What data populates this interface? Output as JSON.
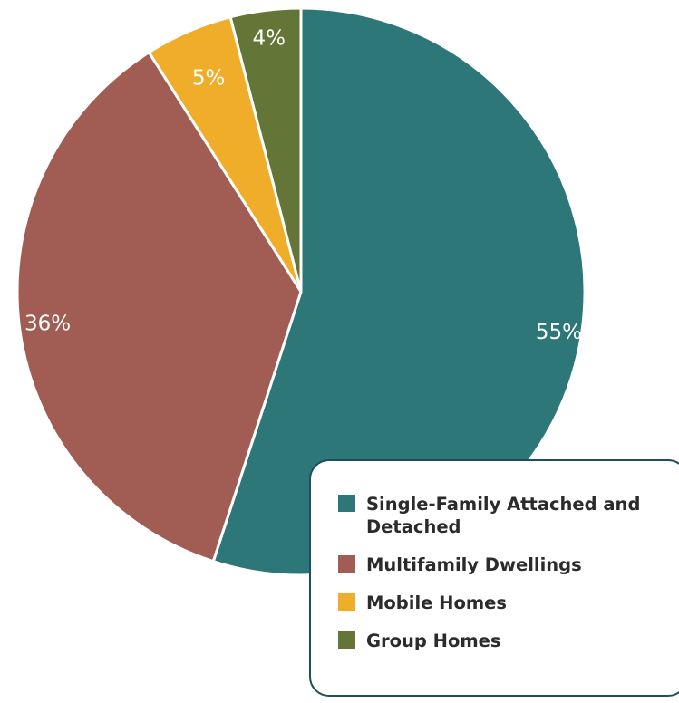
{
  "chart_data": {
    "type": "pie",
    "title": "",
    "slices": [
      {
        "name": "Single-Family Attached and Detached",
        "value": 55,
        "label": "55%",
        "color": "#2d7779"
      },
      {
        "name": "Multifamily Dwellings",
        "value": 36,
        "label": "36%",
        "color": "#a15d54"
      },
      {
        "name": "Mobile Homes",
        "value": 5,
        "label": "5%",
        "color": "#f0ad2a"
      },
      {
        "name": "Group Homes",
        "value": 4,
        "label": "4%",
        "color": "#637637"
      }
    ],
    "legend": {
      "placement": "bottom-right",
      "entries": [
        "Single-Family Attached and Detached",
        "Multifamily Dwellings",
        "Mobile Homes",
        "Group Homes"
      ]
    }
  }
}
